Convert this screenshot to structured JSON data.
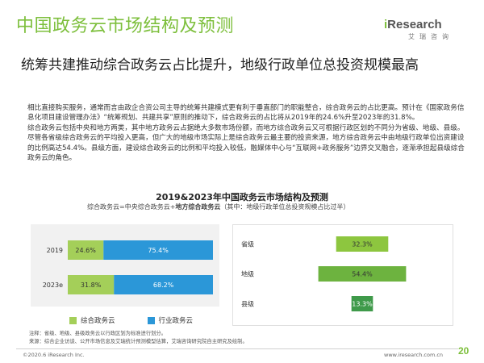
{
  "header": {
    "title": "中国政务云市场结构及预测",
    "logo_text_i": "i",
    "logo_text_rest": "Research",
    "logo_sub": "艾瑞咨询"
  },
  "subtitle": "统筹共建推动综合政务云占比提升，地级行政单位总投资规模最高",
  "body": {
    "paragraph1": "相比直接购买服务，通常而言由政企合资公司主导的统筹共建模式更有利于垂直部门的职能整合，综合政务云的占比更高。预计在《国家政务信息化项目建设管理办法》“统筹规划、共建共享”原则的推动下，综合政务云的占比将从2019年的24.6%升至2023年的31.8%。",
    "paragraph2": "综合政务云包括中央和地方两类，其中地方政务云占据绝大多数市场份额，而地方综合政务云又可根据行政区划的不同分为省级、地级、县级。尽管各省级综合政务云的平均投入更高，但广大的地级市场实际上是综合政务云最主要的投资来源，地方综合政务云中由地级行政单位出资建设的比例高达54.4%。县级方面，建设综合政务云的比例和平均投入较低，融媒体中心与“互联网+政务服务”边界交叉融合，逐渐承担起县级综合政务云的角色。"
  },
  "chart_title": "2019&2023年中国政务云市场结构及预测",
  "formula": {
    "part1": "综合政务云=中央综合政务云+",
    "part2": "地方综合政务云",
    "part3": "（其中：地级行政单位总投资规模占比过半）"
  },
  "chart_data": [
    {
      "type": "bar",
      "orientation": "horizontal",
      "stacked": true,
      "categories": [
        "2019",
        "2023e"
      ],
      "series": [
        {
          "name": "综合政务云",
          "values": [
            24.6,
            31.8
          ],
          "labels": [
            "24.6%",
            "31.8%"
          ],
          "color": "#a4cf59"
        },
        {
          "name": "行业政务云",
          "values": [
            75.4,
            68.2
          ],
          "labels": [
            "75.4%",
            "68.2%"
          ],
          "color": "#2b97d8"
        }
      ],
      "xlim": [
        0,
        100
      ],
      "legend": "bottom",
      "grid": false
    },
    {
      "type": "bar",
      "orientation": "horizontal",
      "categories": [
        "省级",
        "地级",
        "县级"
      ],
      "values": [
        32.3,
        54.4,
        13.3
      ],
      "labels": [
        "32.3%",
        "54.4%",
        "13.3%"
      ],
      "colors": [
        "#8dc63f",
        "#6db33f",
        "#3f9a4a"
      ],
      "xlim": [
        0,
        100
      ],
      "grid": false
    }
  ],
  "notes": {
    "line1": "注释：省级、地级、县级政务云以行政区划为标准进行划分。",
    "line2": "来源：综合企业访谈、公开市场信息及艾瑞统计预测模型估算，艾瑞咨询研究院自主研究及绘制。"
  },
  "footer": {
    "copyright": "©2020.6 iResearch Inc.",
    "website": "www.iresearch.com.cn",
    "page": "20"
  }
}
